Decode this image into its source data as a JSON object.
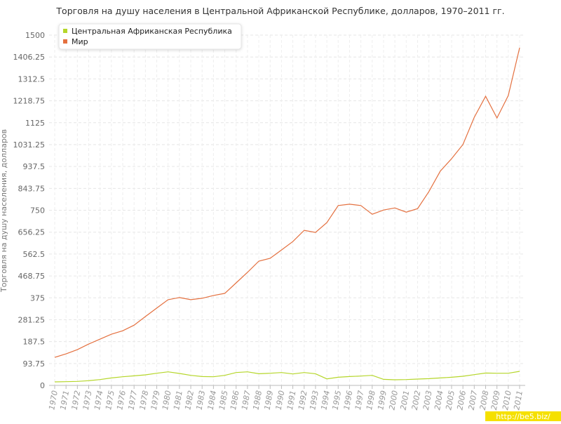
{
  "chart_data": {
    "type": "line",
    "title": "Торговля на душу населения в Центральной Африканской Республике, долларов, 1970–2011 гг.",
    "y_label": "Торговля на душу населения, долларов",
    "watermark": "http://be5.biz/",
    "categories": [
      "1970",
      "1971",
      "1972",
      "1973",
      "1974",
      "1975",
      "1976",
      "1977",
      "1978",
      "1979",
      "1980",
      "1981",
      "1982",
      "1983",
      "1984",
      "1985",
      "1986",
      "1987",
      "1988",
      "1989",
      "1990",
      "1991",
      "1992",
      "1993",
      "1994",
      "1995",
      "1996",
      "1997",
      "1998",
      "1999",
      "2000",
      "2001",
      "2002",
      "2003",
      "2004",
      "2005",
      "2006",
      "2007",
      "2008",
      "2009",
      "2010",
      "2011"
    ],
    "series": [
      {
        "name": "Центральная Африканская Республика",
        "color": "#b5d62a",
        "values": [
          15,
          16,
          17,
          20,
          25,
          32,
          37,
          41,
          45,
          52,
          58,
          51,
          43,
          38,
          37,
          43,
          55,
          58,
          50,
          52,
          55,
          49,
          55,
          50,
          28,
          35,
          38,
          40,
          43,
          26,
          24,
          25,
          27,
          29,
          32,
          35,
          39,
          46,
          53,
          52,
          52,
          60
        ]
      },
      {
        "name": "Мир",
        "color": "#e4703f",
        "values": [
          120,
          135,
          153,
          177,
          198,
          219,
          234,
          258,
          295,
          331,
          367,
          376,
          367,
          373,
          385,
          394,
          439,
          484,
          532,
          544,
          580,
          616,
          664,
          655,
          697,
          770,
          776,
          770,
          733,
          751,
          760,
          742,
          757,
          830,
          917,
          971,
          1031,
          1148,
          1238,
          1145,
          1241,
          1446
        ]
      }
    ],
    "ylim": [
      0,
      1500
    ],
    "yticks": [
      0,
      93.75,
      187.5,
      281.25,
      375,
      468.75,
      562.5,
      656.25,
      750,
      843.75,
      937.5,
      1031.25,
      1125,
      1218.75,
      1312.5,
      1406.25,
      1500
    ],
    "grid": true
  }
}
